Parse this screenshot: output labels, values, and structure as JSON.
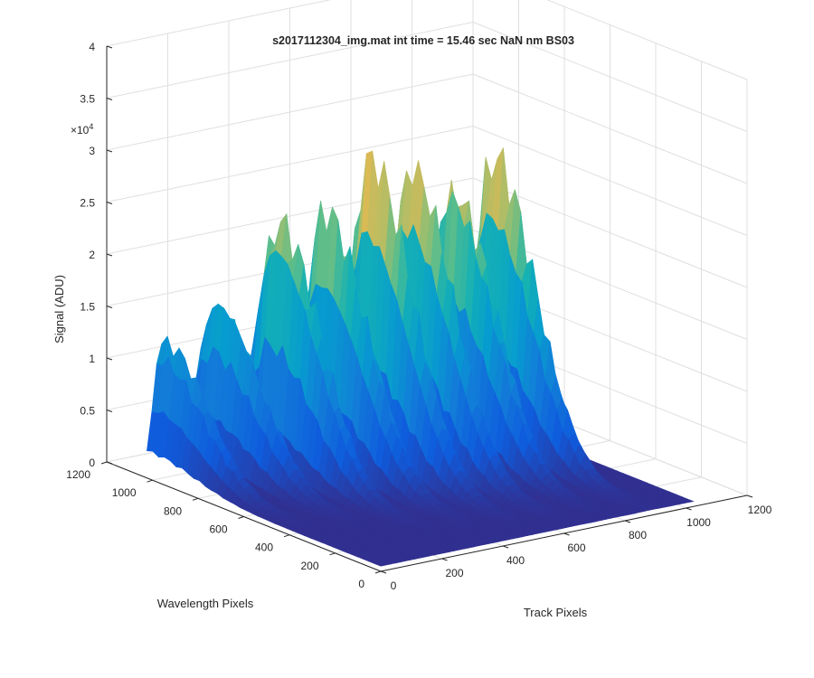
{
  "chart_data": {
    "type": "surface",
    "title": "s2017112304_img.mat int time = 15.46 sec  NaN nm BS03",
    "xlabel": "Track Pixels",
    "ylabel": "Wavelength Pixels",
    "zlabel": "Signal (ADU)",
    "xlim": [
      0,
      1200
    ],
    "ylim": [
      0,
      1200
    ],
    "zlim": [
      0,
      40000
    ],
    "z_exponent_label": "×10",
    "z_exponent_power": "4",
    "x_ticks": [
      "0",
      "200",
      "400",
      "600",
      "800",
      "1000",
      "1200"
    ],
    "y_ticks": [
      "0",
      "200",
      "400",
      "600",
      "800",
      "1000",
      "1200"
    ],
    "z_ticks": [
      "0",
      "0.5",
      "1",
      "1.5",
      "2",
      "2.5",
      "3",
      "3.5",
      "4"
    ],
    "grid": true,
    "colormap": "parula",
    "data_extent": {
      "track_pixels": [
        0,
        1024
      ],
      "wavelength_pixels": [
        0,
        1024
      ]
    },
    "series": [
      {
        "track_center": 45,
        "peak_signal": 12500,
        "peak_wavelength_pixel": 1000
      },
      {
        "track_center": 180,
        "peak_signal": 16000,
        "peak_wavelength_pixel": 950
      },
      {
        "track_center": 300,
        "peak_signal": 24000,
        "peak_wavelength_pixel": 850
      },
      {
        "track_center": 420,
        "peak_signal": 25000,
        "peak_wavelength_pixel": 800
      },
      {
        "track_center": 530,
        "peak_signal": 29500,
        "peak_wavelength_pixel": 750
      },
      {
        "track_center": 640,
        "peak_signal": 28000,
        "peak_wavelength_pixel": 720
      },
      {
        "track_center": 760,
        "peak_signal": 26000,
        "peak_wavelength_pixel": 700
      },
      {
        "track_center": 880,
        "peak_signal": 28000,
        "peak_wavelength_pixel": 680
      }
    ]
  }
}
